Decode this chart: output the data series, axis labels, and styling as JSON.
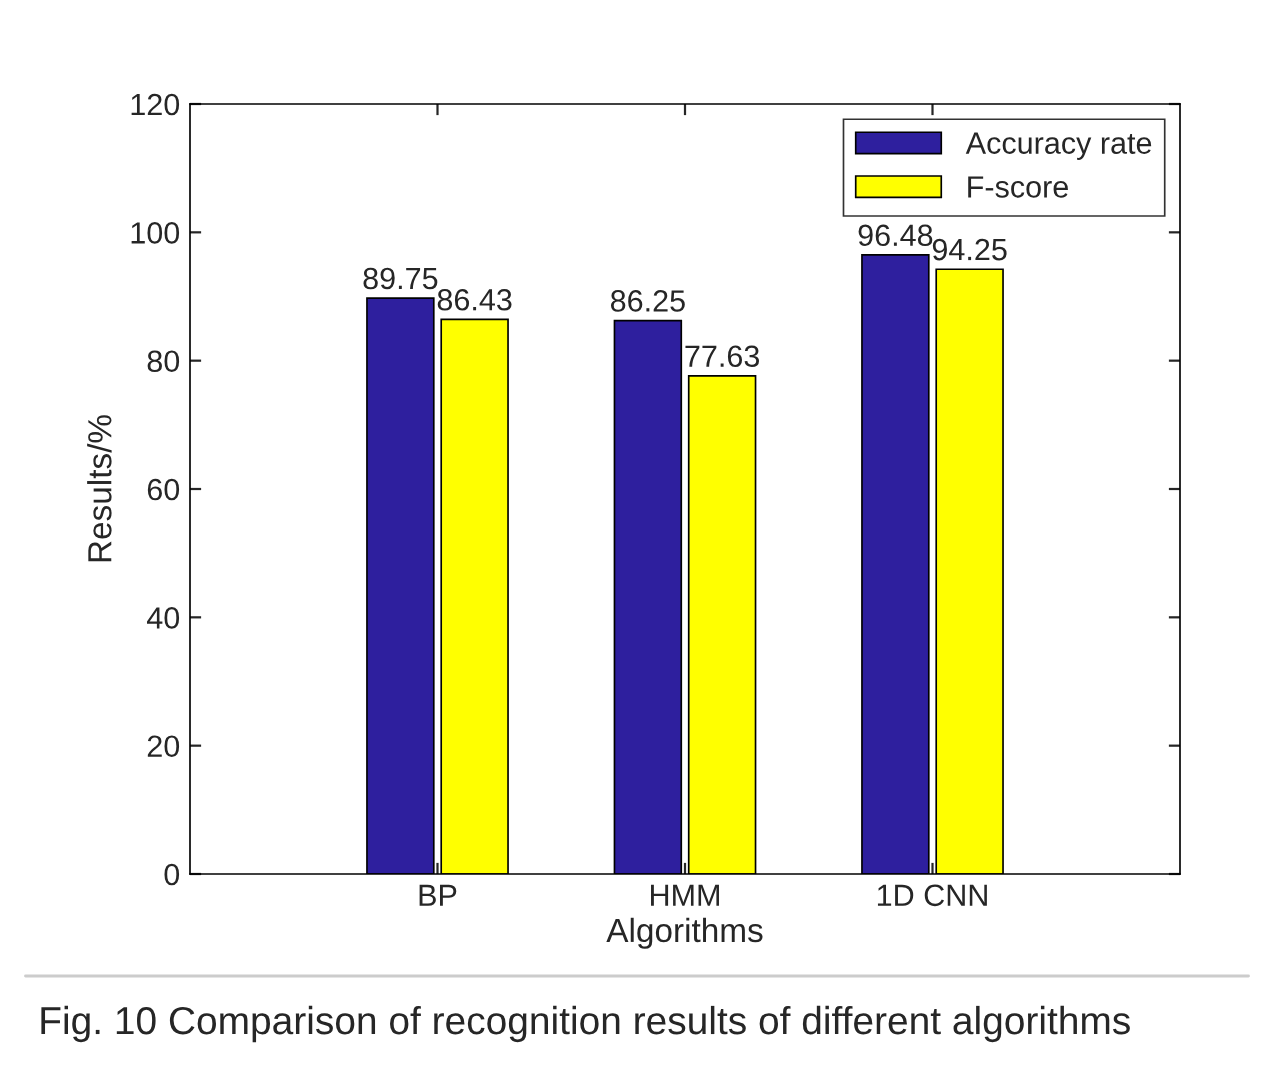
{
  "chart_data": {
    "type": "bar",
    "xlabel": "Algorithms",
    "ylabel": "Results/%",
    "categories": [
      "BP",
      "HMM",
      "1D CNN"
    ],
    "series": [
      {
        "name": "Accuracy rate",
        "color": "#2e1f9e",
        "values": [
          89.75,
          86.25,
          96.48
        ]
      },
      {
        "name": "F-score",
        "color": "#ffff00",
        "values": [
          86.43,
          77.63,
          94.25
        ]
      }
    ],
    "ylim": [
      0,
      120
    ],
    "yticks": [
      0,
      20,
      40,
      60,
      80,
      100,
      120
    ],
    "data_labels": true,
    "legend": "top right",
    "grid": false,
    "annotations": [
      "Fig. 10 Comparison of recognition results of different algorithms"
    ]
  }
}
